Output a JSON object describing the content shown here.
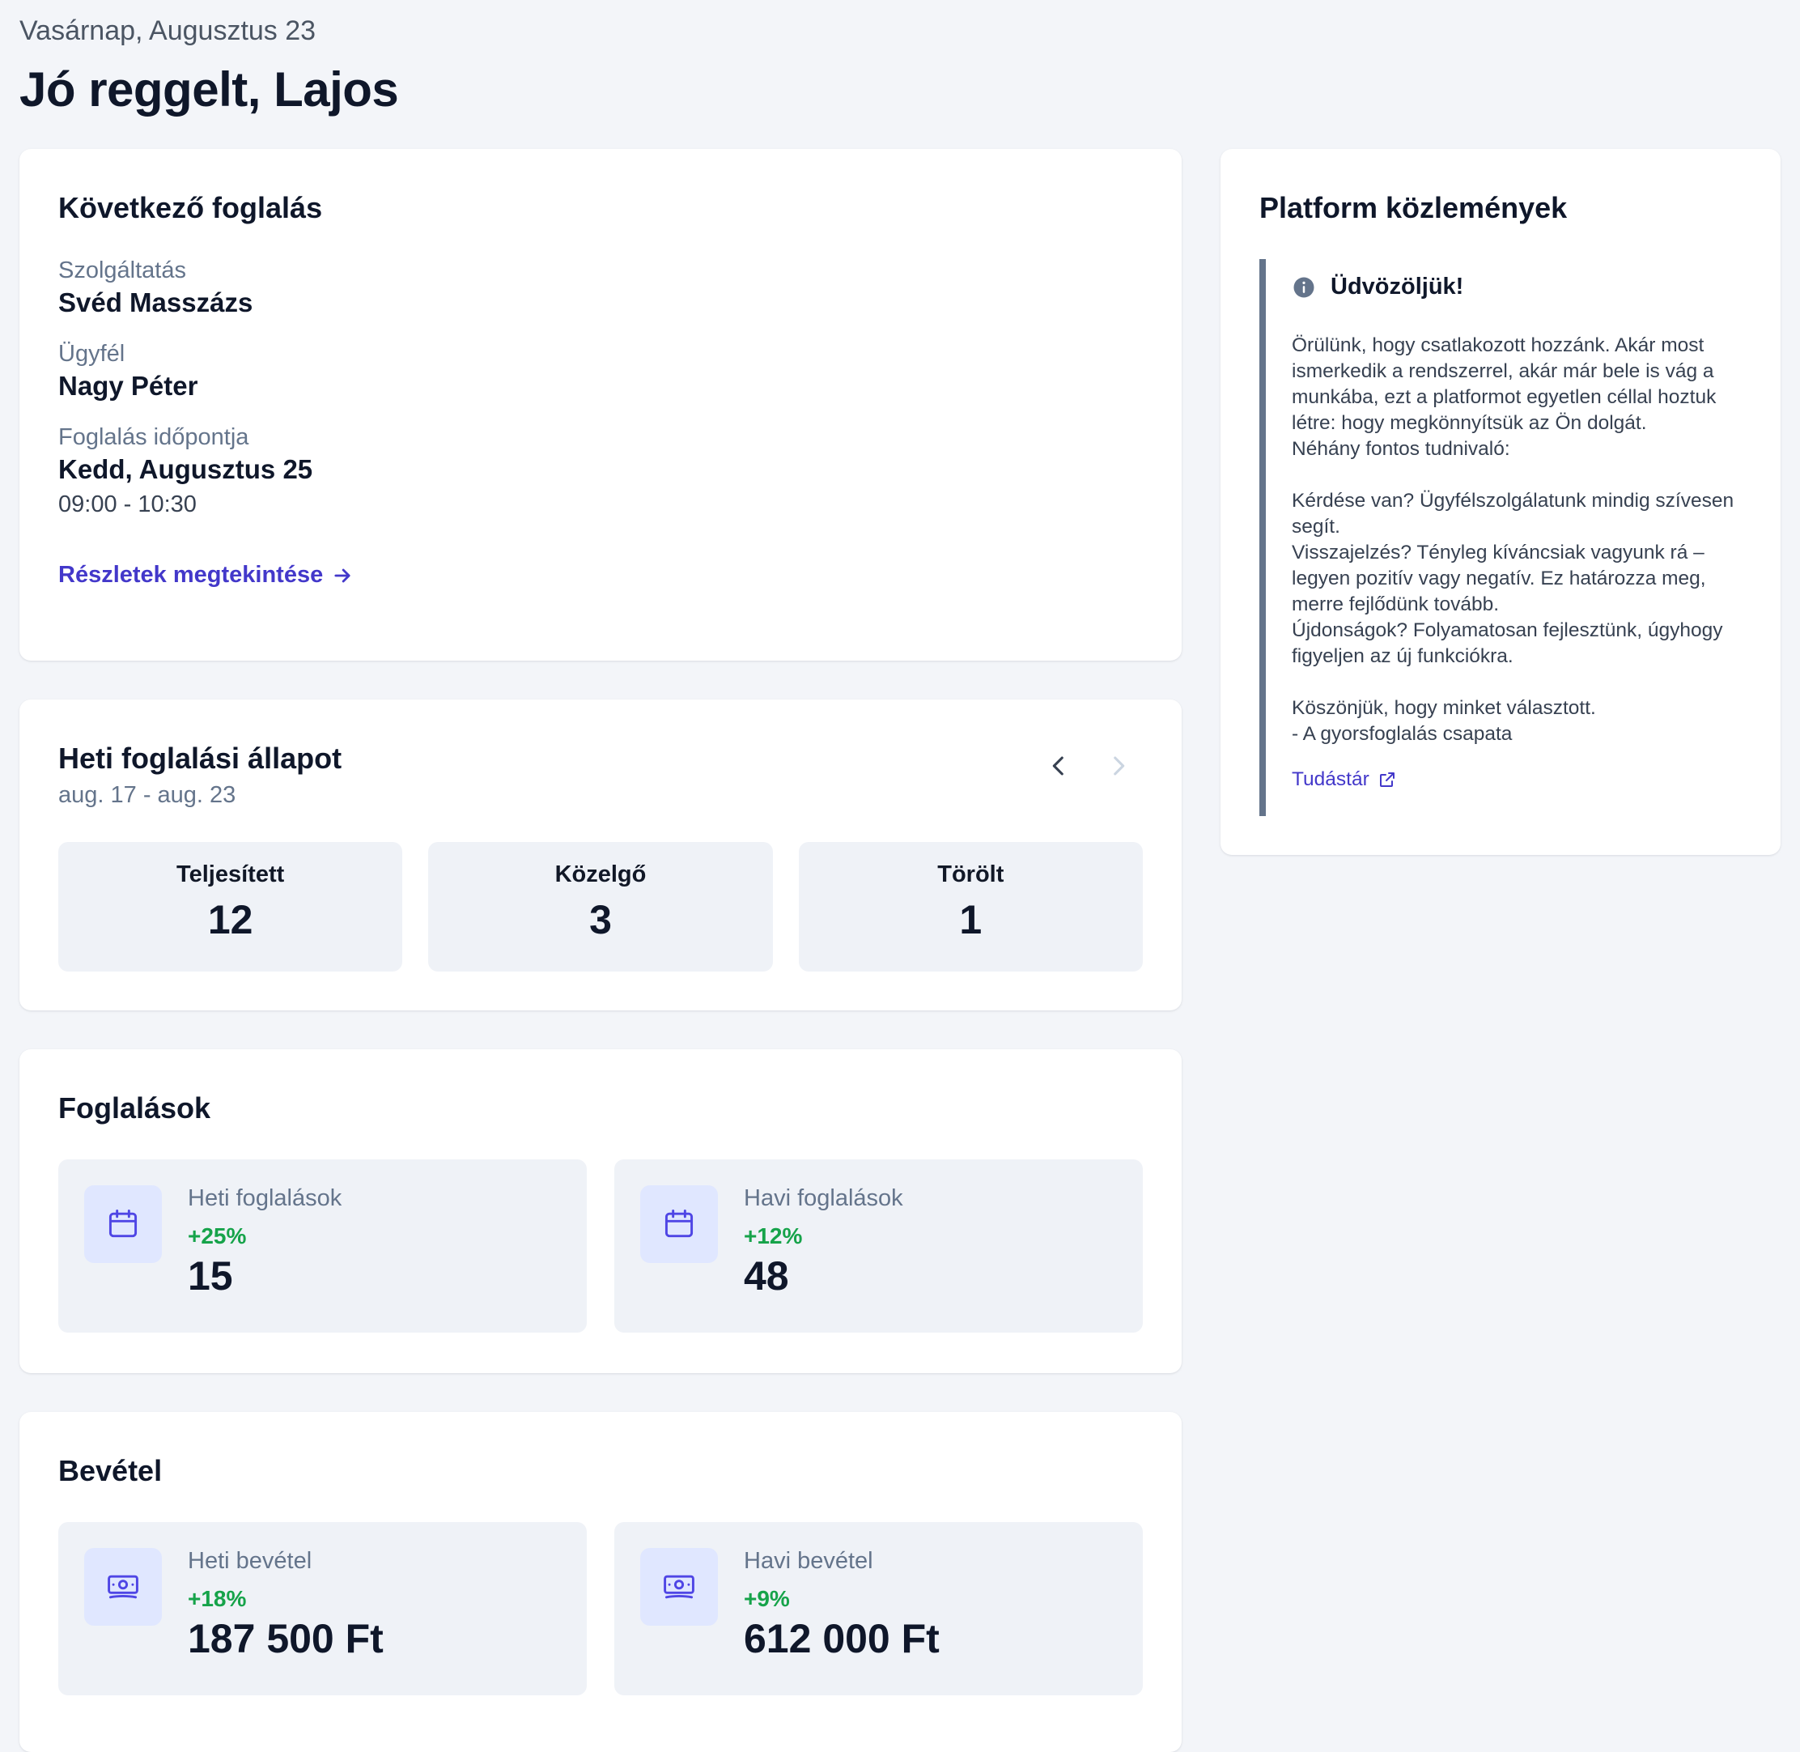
{
  "header": {
    "date": "Vasárnap, Augusztus 23",
    "greeting": "Jó reggelt, Lajos"
  },
  "next_booking": {
    "title": "Következő foglalás",
    "service_label": "Szolgáltatás",
    "service_value": "Svéd Masszázs",
    "client_label": "Ügyfél",
    "client_value": "Nagy Péter",
    "time_label": "Foglalás időpontja",
    "date_value": "Kedd, Augusztus 25",
    "time_value": "09:00 - 10:30",
    "details_link": "Részletek megtekintése"
  },
  "weekly_status": {
    "title": "Heti foglalási állapot",
    "range": "aug. 17 - aug. 23",
    "stats": [
      {
        "label": "Teljesített",
        "value": "12"
      },
      {
        "label": "Közelgő",
        "value": "3"
      },
      {
        "label": "Törölt",
        "value": "1"
      }
    ]
  },
  "bookings": {
    "title": "Foglalások",
    "items": [
      {
        "label": "Heti foglalások",
        "change": "+25%",
        "value": "15",
        "icon": "calendar-icon"
      },
      {
        "label": "Havi foglalások",
        "change": "+12%",
        "value": "48",
        "icon": "calendar-icon"
      }
    ]
  },
  "revenue": {
    "title": "Bevétel",
    "items": [
      {
        "label": "Heti bevétel",
        "change": "+18%",
        "value": "187 500 Ft",
        "icon": "banknote-icon"
      },
      {
        "label": "Havi bevétel",
        "change": "+9%",
        "value": "612 000 Ft",
        "icon": "banknote-icon"
      }
    ]
  },
  "announcements": {
    "title": "Platform közlemények",
    "heading": "Üdvözöljük!",
    "body": "Örülünk, hogy csatlakozott hozzánk. Akár most ismerkedik a rendszerrel, akár már bele is vág a munkába, ezt a platformot egyetlen céllal hoztuk létre: hogy megkönnyítsük az Ön dolgát.\nNéhány fontos tudnivaló:\n\nKérdése van? Ügyfélszolgálatunk mindig szívesen segít.\nVisszajelzés? Tényleg kíváncsiak vagyunk rá – legyen pozitív vagy negatív. Ez határozza meg, merre fejlődünk tovább.\nÚjdonságok? Folyamatosan fejlesztünk, úgyhogy figyeljen az új funkciókra.\n\nKöszönjük, hogy minket választott.\n- A gyorsfoglalás csapata",
    "kb_link": "Tudástár"
  },
  "colors": {
    "accent": "#4338ca",
    "positive": "#16a34a",
    "card_bg": "#ffffff",
    "page_bg": "#f3f5f9",
    "tile_bg": "#eff2f7",
    "icon_bg": "#e0e7ff"
  }
}
